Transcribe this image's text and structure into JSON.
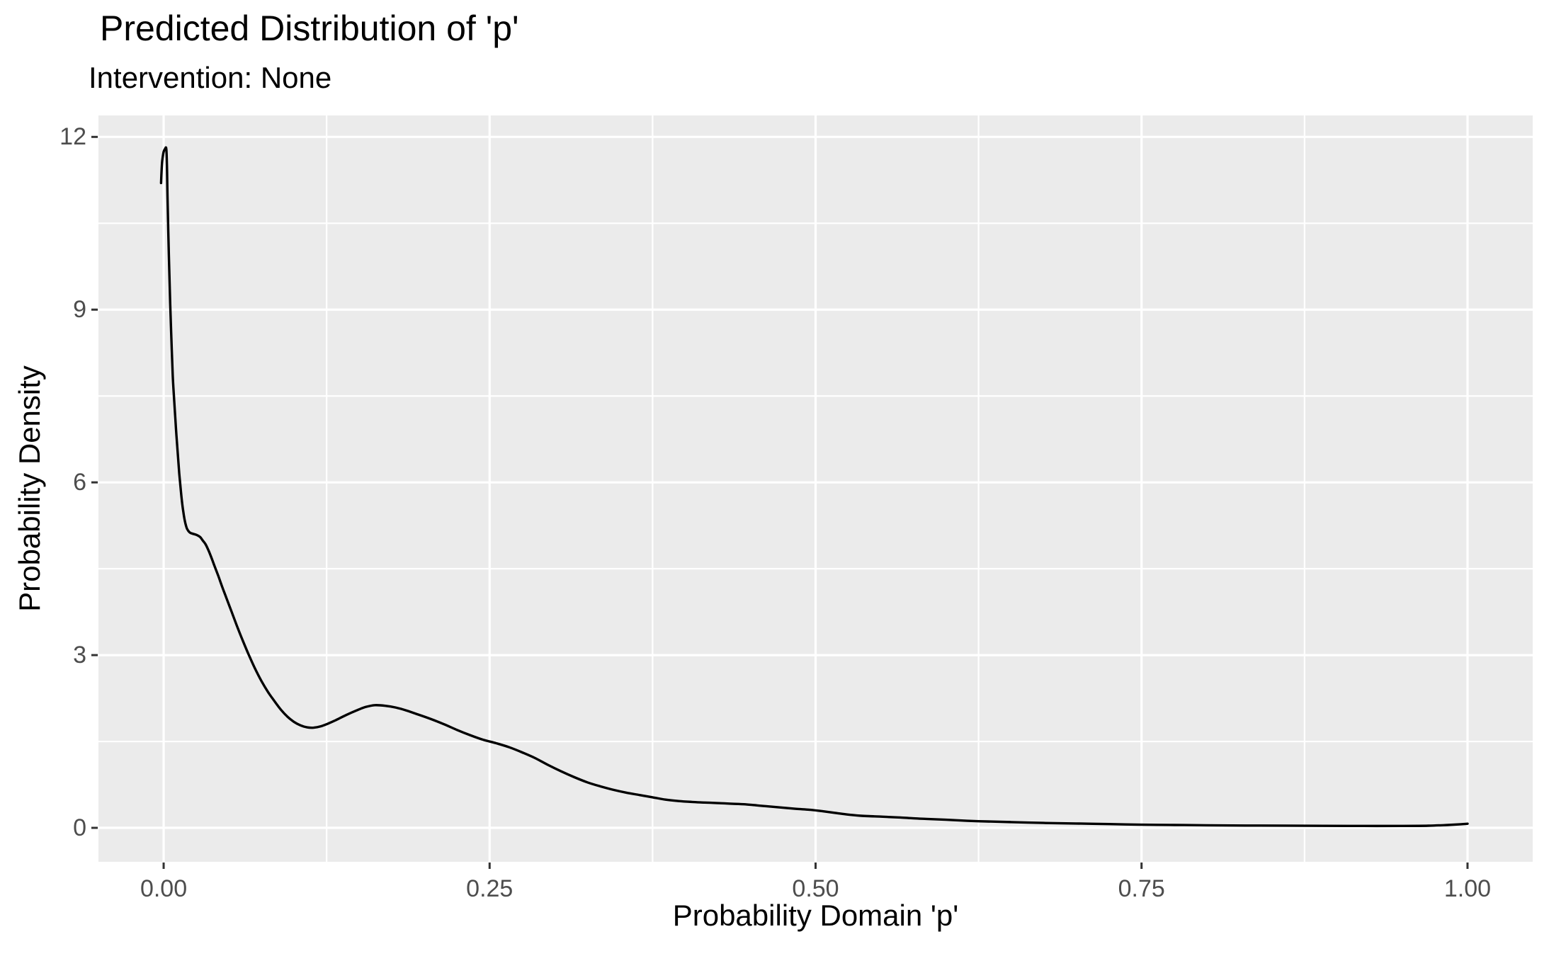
{
  "title": "Predicted Distribution of 'p'",
  "subtitle": "Intervention: None",
  "style": {
    "panel_background": "#EBEBEB",
    "grid_color": "#FFFFFF",
    "curve_color": "#000000",
    "tick_mark_color": "#333333",
    "tick_label_color": "#4D4D4D",
    "text_color": "#000000"
  },
  "chart_data": {
    "type": "line",
    "title": "Predicted Distribution of 'p'",
    "subtitle": "Intervention: None",
    "xlabel": "Probability Domain 'p'",
    "ylabel": "Probability Density",
    "xlim": [
      -0.05,
      1.05
    ],
    "ylim": [
      -0.59,
      12.373
    ],
    "grid": "white major and minor gridlines on grey panel",
    "legend_position": "none",
    "x_ticks": [
      {
        "value": 0.0,
        "label": "0.00"
      },
      {
        "value": 0.25,
        "label": "0.25"
      },
      {
        "value": 0.5,
        "label": "0.50"
      },
      {
        "value": 0.75,
        "label": "0.75"
      },
      {
        "value": 1.0,
        "label": "1.00"
      }
    ],
    "y_ticks": [
      {
        "value": 0,
        "label": "0"
      },
      {
        "value": 3,
        "label": "3"
      },
      {
        "value": 6,
        "label": "6"
      },
      {
        "value": 9,
        "label": "9"
      },
      {
        "value": 12,
        "label": "12"
      }
    ],
    "x_minor_ticks": [
      0.125,
      0.375,
      0.625,
      0.875
    ],
    "y_minor_ticks": [
      1.5,
      4.5,
      7.5,
      10.5
    ],
    "series": [
      {
        "name": "density",
        "color": "#000000",
        "linewidth": 3.4,
        "points": [
          [
            -0.002,
            11.2
          ],
          [
            -0.0015,
            11.45
          ],
          [
            -0.001,
            11.6
          ],
          [
            0.0,
            11.74
          ],
          [
            0.001,
            11.79
          ],
          [
            0.002,
            11.8
          ],
          [
            0.0025,
            11.55
          ],
          [
            0.003,
            10.9
          ],
          [
            0.004,
            9.95
          ],
          [
            0.005,
            9.1
          ],
          [
            0.006,
            8.45
          ],
          [
            0.007,
            7.85
          ],
          [
            0.008,
            7.45
          ],
          [
            0.009,
            7.1
          ],
          [
            0.01,
            6.75
          ],
          [
            0.011,
            6.45
          ],
          [
            0.012,
            6.15
          ],
          [
            0.013,
            5.9
          ],
          [
            0.014,
            5.68
          ],
          [
            0.015,
            5.5
          ],
          [
            0.016,
            5.36
          ],
          [
            0.017,
            5.26
          ],
          [
            0.018,
            5.19
          ],
          [
            0.02,
            5.13
          ],
          [
            0.022,
            5.11
          ],
          [
            0.025,
            5.09
          ],
          [
            0.028,
            5.05
          ],
          [
            0.03,
            4.99
          ],
          [
            0.032,
            4.93
          ],
          [
            0.034,
            4.84
          ],
          [
            0.036,
            4.73
          ],
          [
            0.039,
            4.55
          ],
          [
            0.042,
            4.37
          ],
          [
            0.045,
            4.18
          ],
          [
            0.048,
            4.0
          ],
          [
            0.052,
            3.76
          ],
          [
            0.056,
            3.52
          ],
          [
            0.06,
            3.29
          ],
          [
            0.065,
            3.02
          ],
          [
            0.07,
            2.77
          ],
          [
            0.075,
            2.55
          ],
          [
            0.08,
            2.36
          ],
          [
            0.085,
            2.2
          ],
          [
            0.09,
            2.05
          ],
          [
            0.095,
            1.93
          ],
          [
            0.1,
            1.84
          ],
          [
            0.105,
            1.78
          ],
          [
            0.11,
            1.745
          ],
          [
            0.115,
            1.74
          ],
          [
            0.12,
            1.76
          ],
          [
            0.126,
            1.81
          ],
          [
            0.132,
            1.87
          ],
          [
            0.14,
            1.96
          ],
          [
            0.148,
            2.04
          ],
          [
            0.155,
            2.1
          ],
          [
            0.162,
            2.13
          ],
          [
            0.17,
            2.12
          ],
          [
            0.178,
            2.09
          ],
          [
            0.186,
            2.04
          ],
          [
            0.195,
            1.97
          ],
          [
            0.205,
            1.89
          ],
          [
            0.215,
            1.8
          ],
          [
            0.225,
            1.7
          ],
          [
            0.235,
            1.61
          ],
          [
            0.245,
            1.53
          ],
          [
            0.255,
            1.47
          ],
          [
            0.265,
            1.4
          ],
          [
            0.275,
            1.31
          ],
          [
            0.285,
            1.21
          ],
          [
            0.295,
            1.09
          ],
          [
            0.305,
            0.98
          ],
          [
            0.315,
            0.88
          ],
          [
            0.325,
            0.79
          ],
          [
            0.335,
            0.72
          ],
          [
            0.345,
            0.66
          ],
          [
            0.355,
            0.61
          ],
          [
            0.365,
            0.57
          ],
          [
            0.375,
            0.53
          ],
          [
            0.385,
            0.49
          ],
          [
            0.395,
            0.465
          ],
          [
            0.405,
            0.45
          ],
          [
            0.415,
            0.44
          ],
          [
            0.425,
            0.43
          ],
          [
            0.435,
            0.42
          ],
          [
            0.445,
            0.41
          ],
          [
            0.455,
            0.39
          ],
          [
            0.465,
            0.37
          ],
          [
            0.475,
            0.35
          ],
          [
            0.485,
            0.33
          ],
          [
            0.495,
            0.315
          ],
          [
            0.505,
            0.29
          ],
          [
            0.515,
            0.26
          ],
          [
            0.525,
            0.23
          ],
          [
            0.535,
            0.21
          ],
          [
            0.545,
            0.2
          ],
          [
            0.555,
            0.19
          ],
          [
            0.565,
            0.18
          ],
          [
            0.575,
            0.165
          ],
          [
            0.585,
            0.155
          ],
          [
            0.6,
            0.14
          ],
          [
            0.625,
            0.115
          ],
          [
            0.65,
            0.1
          ],
          [
            0.675,
            0.085
          ],
          [
            0.7,
            0.075
          ],
          [
            0.725,
            0.065
          ],
          [
            0.75,
            0.055
          ],
          [
            0.775,
            0.05
          ],
          [
            0.8,
            0.045
          ],
          [
            0.83,
            0.04
          ],
          [
            0.86,
            0.038
          ],
          [
            0.89,
            0.035
          ],
          [
            0.92,
            0.033
          ],
          [
            0.95,
            0.033
          ],
          [
            0.97,
            0.037
          ],
          [
            0.985,
            0.05
          ],
          [
            0.995,
            0.063
          ],
          [
            1.0,
            0.072
          ]
        ]
      }
    ]
  }
}
